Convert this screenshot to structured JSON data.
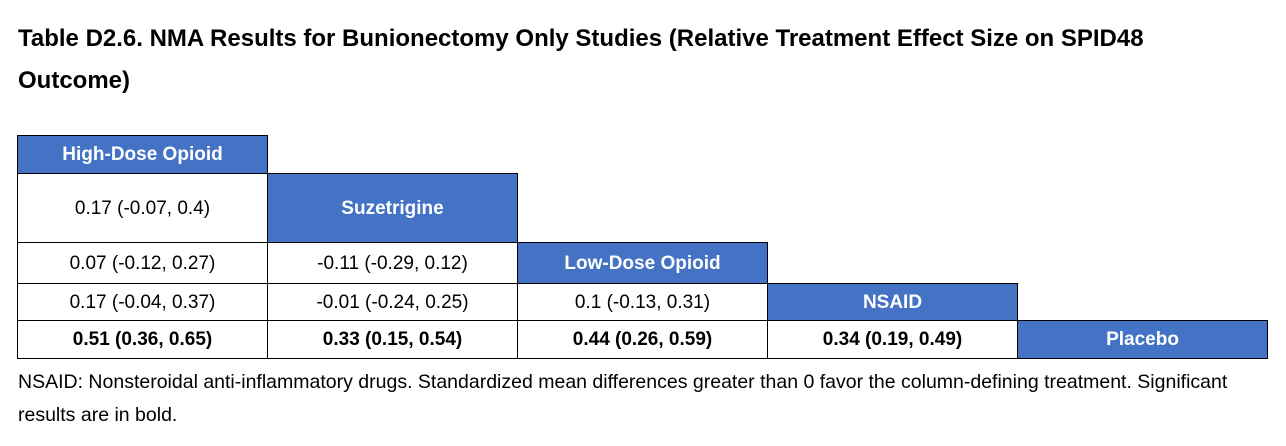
{
  "title": "Table D2.6. NMA Results for Bunionectomy Only Studies (Relative Treatment Effect Size on SPID48 Outcome)",
  "treatments": [
    "High-Dose Opioid",
    "Suzetrigine",
    "Low-Dose Opioid",
    "NSAID",
    "Placebo"
  ],
  "rows": [
    [],
    [
      "0.17 (-0.07, 0.4)"
    ],
    [
      "0.07 (-0.12, 0.27)",
      "-0.11 (-0.29, 0.12)"
    ],
    [
      "0.17 (-0.04, 0.37)",
      "-0.01 (-0.24, 0.25)",
      "0.1 (-0.13, 0.31)"
    ],
    [
      "0.51 (0.36, 0.65)",
      "0.33 (0.15, 0.54)",
      "0.44 (0.26, 0.59)",
      "0.34 (0.19, 0.49)"
    ]
  ],
  "footnote": "NSAID: Nonsteroidal anti-inflammatory drugs. Standardized mean differences greater than 0 favor the column-defining treatment. Significant results are in bold."
}
